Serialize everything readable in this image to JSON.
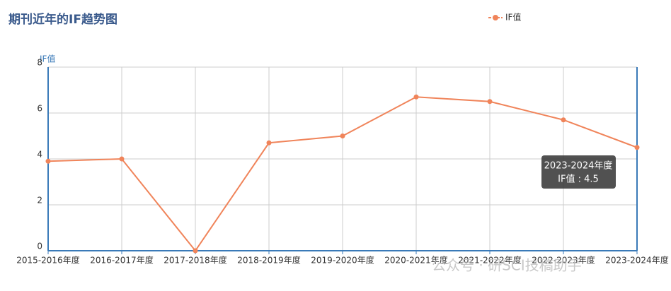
{
  "chart_data": {
    "type": "line",
    "title": "期刊近年的IF趋势图",
    "y_label": "IF值",
    "categories": [
      "2015-2016年度",
      "2016-2017年度",
      "2017-2018年度",
      "2018-2019年度",
      "2019-2020年度",
      "2020-2021年度",
      "2021-2022年度",
      "2022-2023年度",
      "2023-2024年度"
    ],
    "series": [
      {
        "name": "IF值",
        "color": "#f0845a",
        "values": [
          3.9,
          4.0,
          0,
          4.7,
          5.0,
          6.7,
          6.5,
          5.7,
          4.5
        ]
      }
    ],
    "ylim": [
      0,
      8
    ],
    "yticks": [
      0,
      2,
      4,
      6,
      8
    ],
    "grid": true,
    "legend": "top-right",
    "tooltip": {
      "title": "2023-2024年度",
      "body": "IF值 : 4.5"
    },
    "watermark": "公众号 · 研SCI技稿助手"
  }
}
